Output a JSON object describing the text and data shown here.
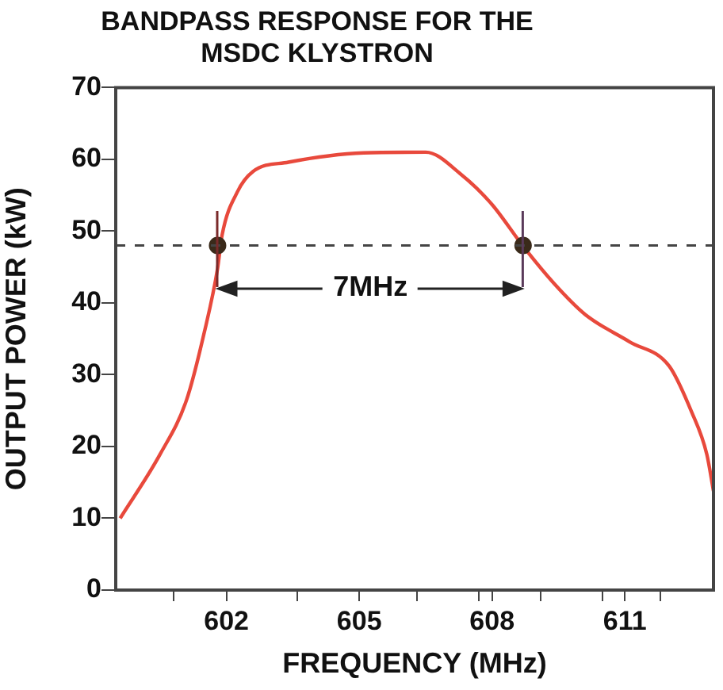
{
  "chart_data": {
    "type": "line",
    "title": "BANDPASS RESPONSE FOR THE\nMSDC KLYSTRON",
    "xlabel": "FREQUENCY (MHz)",
    "ylabel": "OUTPUT POWER (kW)",
    "xlim": [
      599.5,
      613.0
    ],
    "xticks": [
      {
        "value": 600.8,
        "label": null
      },
      602,
      {
        "value": 603.6,
        "label": null
      },
      605,
      {
        "value": 606.3,
        "label": null
      },
      {
        "value": 607.7,
        "label": null
      },
      608,
      {
        "value": 609.1,
        "label": null
      },
      {
        "value": 610.5,
        "label": null
      },
      611,
      {
        "value": 611.8,
        "label": null
      }
    ],
    "ylim": [
      0,
      70
    ],
    "yticks": [
      0,
      10,
      20,
      30,
      40,
      50,
      60,
      70
    ],
    "series": [
      {
        "type": "line",
        "color": "#e8493c",
        "marker": "none",
        "x": [
          599.6,
          600.5,
          601.1,
          601.5,
          601.8,
          601.9,
          602.25,
          602.6,
          603.4,
          605.1,
          606.5,
          607.3,
          608.0,
          608.7,
          609.4,
          610.1,
          611.1,
          612.0,
          612.5,
          612.85,
          613.0
        ],
        "values": [
          10,
          18.9,
          26.5,
          35.9,
          44.8,
          49.4,
          55.5,
          58.3,
          59.6,
          60.9,
          61.0,
          57.9,
          53.7,
          47.9,
          42.7,
          38.4,
          34.6,
          31.2,
          24.9,
          18.9,
          13.8
        ]
      },
      {
        "type": "scatter",
        "color": "#3a2a1a",
        "marker": "circle",
        "x": [
          601.8,
          608.7
        ],
        "values": [
          48,
          48
        ]
      }
    ],
    "ref_lines": [
      {
        "axis": "y",
        "value": 48,
        "label": null,
        "color": "#444444",
        "line_style": "dashed"
      }
    ],
    "annotations": [
      "7MHz"
    ],
    "grid": false,
    "legend": false
  }
}
